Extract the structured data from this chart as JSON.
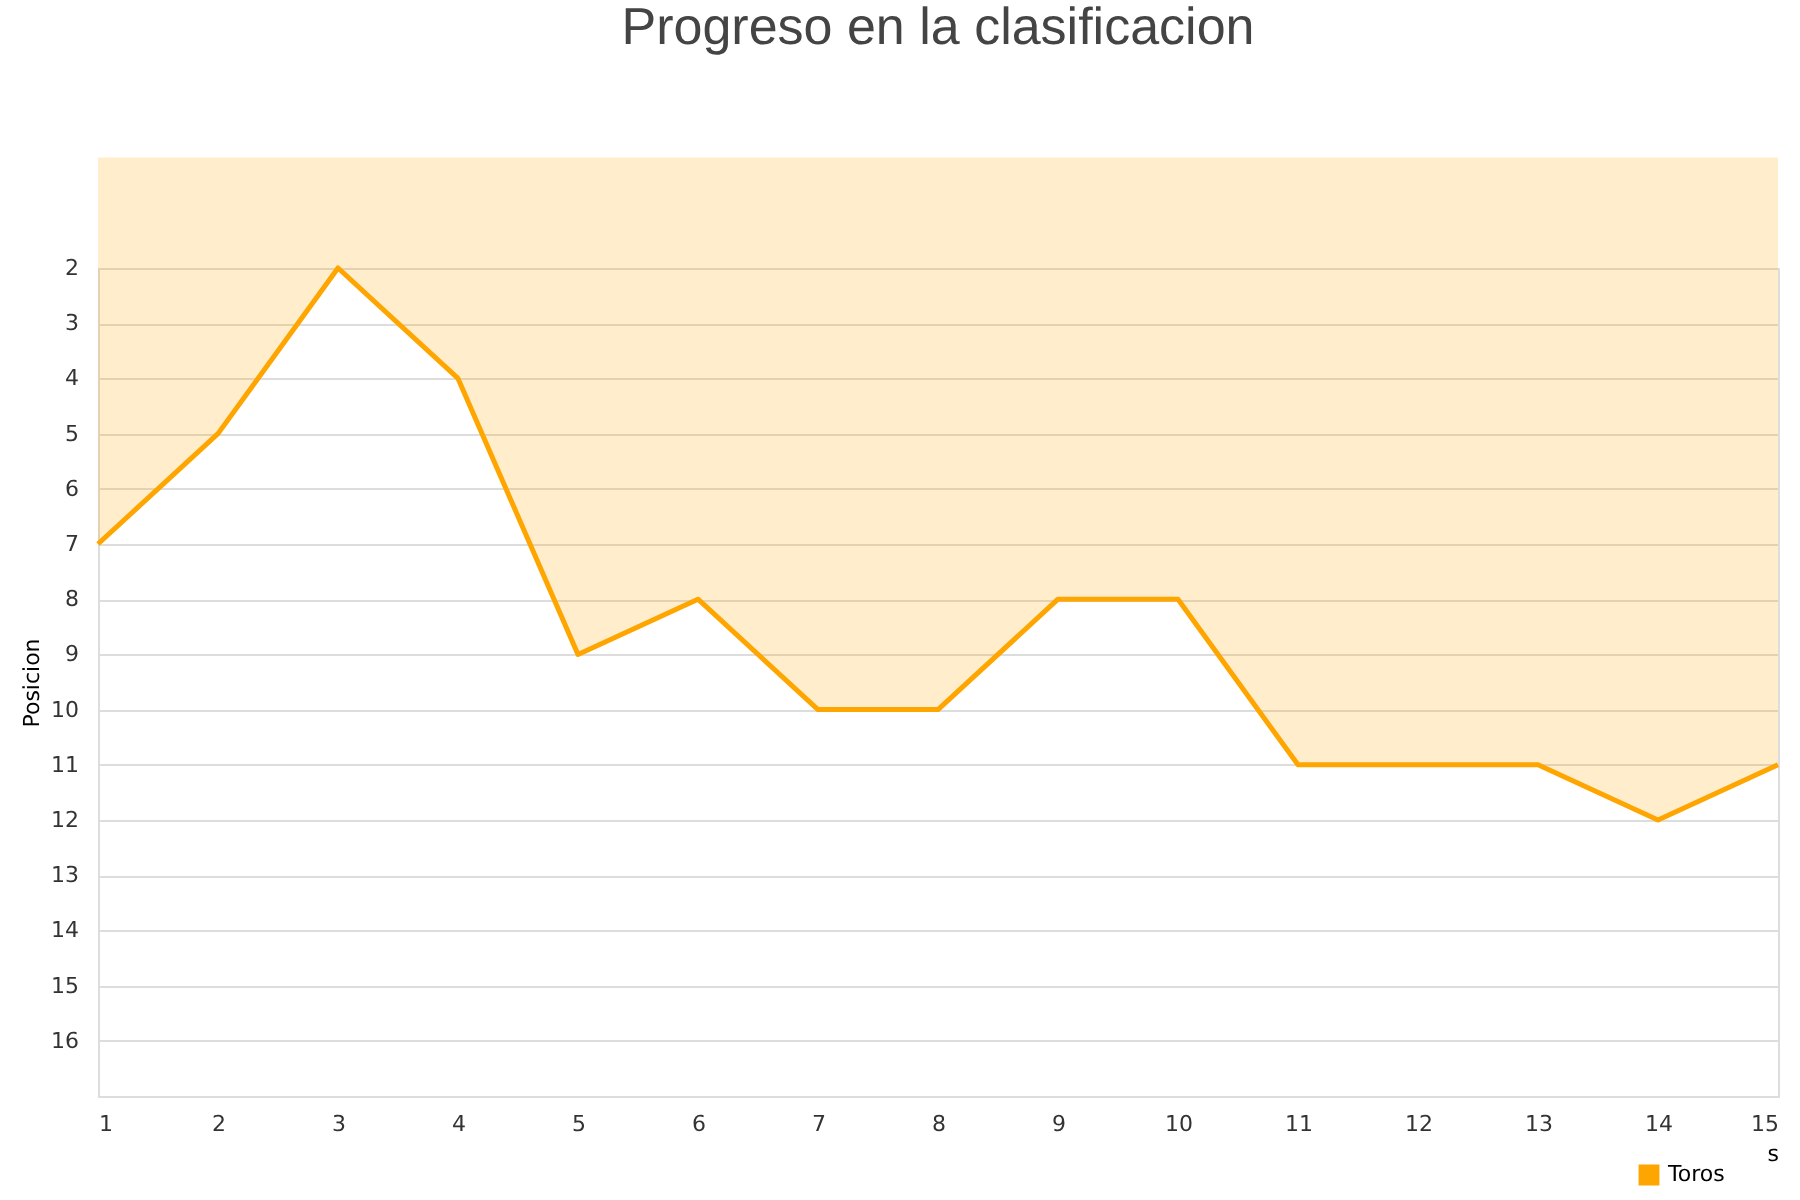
{
  "chart_data": {
    "type": "area",
    "title": "Progreso en la clasificacion",
    "xlabel": "s",
    "ylabel": "Posicion",
    "x": [
      1,
      2,
      3,
      4,
      5,
      6,
      7,
      8,
      9,
      10,
      11,
      12,
      13,
      14,
      15
    ],
    "series": [
      {
        "name": "Toros",
        "color": "#ffa500",
        "values": [
          7,
          5,
          2,
          4,
          9,
          8,
          10,
          10,
          8,
          8,
          11,
          11,
          11,
          12,
          11
        ]
      }
    ],
    "xlim": [
      1,
      15
    ],
    "xticks": [
      1,
      2,
      3,
      4,
      5,
      6,
      7,
      8,
      9,
      10,
      11,
      12,
      13,
      14,
      15
    ],
    "ylim": [
      17,
      2
    ],
    "yticks": [
      2,
      3,
      4,
      5,
      6,
      7,
      8,
      9,
      10,
      11,
      12,
      13,
      14,
      15,
      16
    ],
    "grid": "y",
    "legend": "bottom right"
  }
}
